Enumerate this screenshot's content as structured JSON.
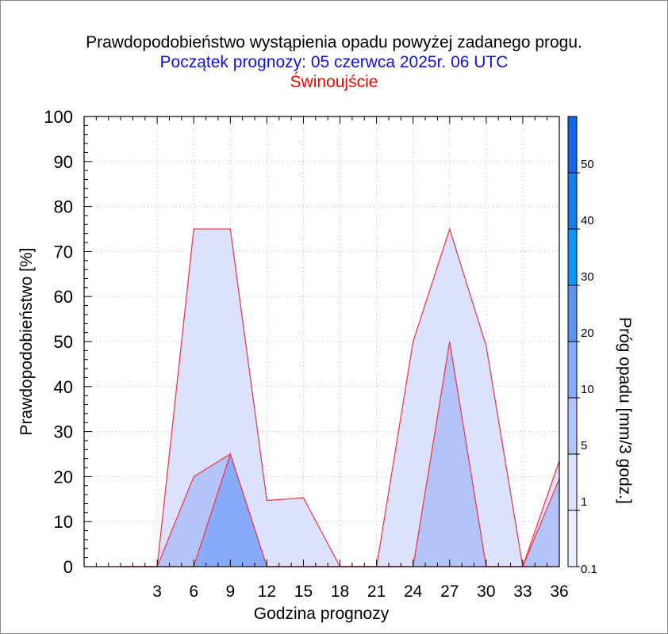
{
  "header": {
    "title": "Prawdopodobieństwo wystąpienia opadu powyżej zadanego progu.",
    "subtitle": "Początek prognozy: 05 czerwca 2025r. 06 UTC",
    "location": "Świnoujście"
  },
  "chart_data": {
    "type": "area",
    "xlabel": "Godzina prognozy",
    "ylabel": "Prawdopodobieństwo [%]",
    "colorbar_label": "Próg opadu [mm/3 godz.]",
    "x": [
      0,
      3,
      6,
      9,
      12,
      15,
      18,
      21,
      24,
      27,
      30,
      33,
      36
    ],
    "xticks": [
      3,
      6,
      9,
      12,
      15,
      18,
      21,
      24,
      27,
      30,
      33,
      36
    ],
    "xlim": [
      -3,
      36
    ],
    "ylim": [
      0,
      100
    ],
    "yticks": [
      0,
      10,
      20,
      30,
      40,
      50,
      60,
      70,
      80,
      90,
      100
    ],
    "grid": true,
    "outline_color": "#ee3b4b",
    "series": [
      {
        "name": "0.1",
        "color": "#dce2fc",
        "values": [
          0,
          0,
          75,
          75,
          14.7,
          15.3,
          0,
          0,
          50,
          75,
          49,
          0,
          23.5
        ]
      },
      {
        "name": "1",
        "color": "#b4c4fb",
        "values": [
          0,
          0,
          20,
          25,
          0,
          0,
          0,
          0,
          0,
          50,
          0,
          0,
          19.5
        ]
      },
      {
        "name": "5",
        "color": "#88aafa",
        "values": [
          0,
          0,
          0,
          25,
          0,
          0,
          0,
          0,
          0,
          0,
          0,
          0,
          0
        ]
      }
    ],
    "colorbar": {
      "ticks": [
        "0.1",
        "1",
        "5",
        "10",
        "20",
        "30",
        "40",
        "50"
      ],
      "colors": [
        "#ebeeff",
        "#dce2fc",
        "#b4c4fb",
        "#88aafa",
        "#5c93f6",
        "#0a98fc",
        "#1a7df2",
        "#1366ec",
        "#0b53d6",
        "#0340b8"
      ]
    }
  }
}
